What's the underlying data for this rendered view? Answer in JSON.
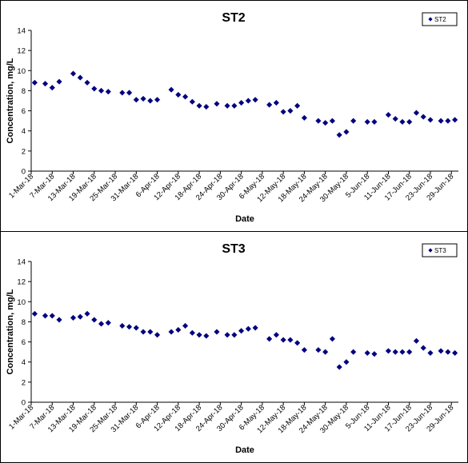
{
  "chart_data": [
    {
      "type": "scatter",
      "title": "ST2",
      "xlabel": "Date",
      "ylabel": "Concentration, mg/L",
      "ylim": [
        0,
        14
      ],
      "yticks": [
        "0",
        "2",
        "4",
        "6",
        "8",
        "10",
        "12",
        "14"
      ],
      "x_tick_labels": [
        "1-Mar-18",
        "7-Mar-18",
        "13-Mar-18",
        "19-Mar-18",
        "25-Mar-18",
        "31-Mar-18",
        "6-Apr-18",
        "12-Apr-18",
        "18-Apr-18",
        "24-Apr-18",
        "30-Apr-18",
        "6-May-18",
        "12-May-18",
        "18-May-18",
        "24-May-18",
        "30-May-18",
        "5-Jun-18",
        "11-Jun-18",
        "17-Jun-18",
        "23-Jun-18",
        "29-Jun-18"
      ],
      "legend": "top-right",
      "marker_color": "#000080",
      "series": [
        {
          "name": "ST2",
          "points": [
            [
              "2018-03-02",
              8.8
            ],
            [
              "2018-03-05",
              8.7
            ],
            [
              "2018-03-07",
              8.3
            ],
            [
              "2018-03-09",
              8.9
            ],
            [
              "2018-03-13",
              9.7
            ],
            [
              "2018-03-15",
              9.3
            ],
            [
              "2018-03-17",
              8.8
            ],
            [
              "2018-03-19",
              8.2
            ],
            [
              "2018-03-21",
              8.0
            ],
            [
              "2018-03-23",
              7.9
            ],
            [
              "2018-03-27",
              7.8
            ],
            [
              "2018-03-29",
              7.8
            ],
            [
              "2018-03-31",
              7.1
            ],
            [
              "2018-04-02",
              7.2
            ],
            [
              "2018-04-04",
              7.0
            ],
            [
              "2018-04-06",
              7.1
            ],
            [
              "2018-04-10",
              8.1
            ],
            [
              "2018-04-12",
              7.6
            ],
            [
              "2018-04-14",
              7.4
            ],
            [
              "2018-04-16",
              6.9
            ],
            [
              "2018-04-18",
              6.5
            ],
            [
              "2018-04-20",
              6.4
            ],
            [
              "2018-04-23",
              6.7
            ],
            [
              "2018-04-26",
              6.5
            ],
            [
              "2018-04-28",
              6.5
            ],
            [
              "2018-04-30",
              6.8
            ],
            [
              "2018-05-02",
              7.0
            ],
            [
              "2018-05-04",
              7.1
            ],
            [
              "2018-05-08",
              6.6
            ],
            [
              "2018-05-10",
              6.8
            ],
            [
              "2018-05-12",
              5.9
            ],
            [
              "2018-05-14",
              6.0
            ],
            [
              "2018-05-16",
              6.5
            ],
            [
              "2018-05-18",
              5.3
            ],
            [
              "2018-05-22",
              5.0
            ],
            [
              "2018-05-24",
              4.8
            ],
            [
              "2018-05-26",
              5.0
            ],
            [
              "2018-05-28",
              3.6
            ],
            [
              "2018-05-30",
              3.9
            ],
            [
              "2018-06-01",
              5.0
            ],
            [
              "2018-06-05",
              4.9
            ],
            [
              "2018-06-07",
              4.9
            ],
            [
              "2018-06-11",
              5.6
            ],
            [
              "2018-06-13",
              5.2
            ],
            [
              "2018-06-15",
              4.9
            ],
            [
              "2018-06-17",
              4.9
            ],
            [
              "2018-06-19",
              5.8
            ],
            [
              "2018-06-21",
              5.4
            ],
            [
              "2018-06-23",
              5.1
            ],
            [
              "2018-06-26",
              5.0
            ],
            [
              "2018-06-28",
              5.0
            ],
            [
              "2018-06-30",
              5.1
            ]
          ]
        }
      ]
    },
    {
      "type": "scatter",
      "title": "ST3",
      "xlabel": "Date",
      "ylabel": "Concentration, mg/L",
      "ylim": [
        0,
        14
      ],
      "yticks": [
        "0",
        "2",
        "4",
        "6",
        "8",
        "10",
        "12",
        "14"
      ],
      "x_tick_labels": [
        "1-Mar-18",
        "7-Mar-18",
        "13-Mar-18",
        "19-Mar-18",
        "25-Mar-18",
        "31-Mar-18",
        "6-Apr-18",
        "12-Apr-18",
        "18-Apr-18",
        "24-Apr-18",
        "30-Apr-18",
        "6-May-18",
        "12-May-18",
        "18-May-18",
        "24-May-18",
        "30-May-18",
        "5-Jun-18",
        "11-Jun-18",
        "17-Jun-18",
        "23-Jun-18",
        "29-Jun-18"
      ],
      "legend": "top-right",
      "marker_color": "#000080",
      "series": [
        {
          "name": "ST3",
          "points": [
            [
              "2018-03-02",
              8.8
            ],
            [
              "2018-03-05",
              8.6
            ],
            [
              "2018-03-07",
              8.6
            ],
            [
              "2018-03-09",
              8.2
            ],
            [
              "2018-03-13",
              8.4
            ],
            [
              "2018-03-15",
              8.5
            ],
            [
              "2018-03-17",
              8.8
            ],
            [
              "2018-03-19",
              8.2
            ],
            [
              "2018-03-21",
              7.8
            ],
            [
              "2018-03-23",
              7.9
            ],
            [
              "2018-03-27",
              7.6
            ],
            [
              "2018-03-29",
              7.5
            ],
            [
              "2018-03-31",
              7.4
            ],
            [
              "2018-04-02",
              7.0
            ],
            [
              "2018-04-04",
              7.0
            ],
            [
              "2018-04-06",
              6.7
            ],
            [
              "2018-04-10",
              7.0
            ],
            [
              "2018-04-12",
              7.2
            ],
            [
              "2018-04-14",
              7.6
            ],
            [
              "2018-04-16",
              6.9
            ],
            [
              "2018-04-18",
              6.7
            ],
            [
              "2018-04-20",
              6.6
            ],
            [
              "2018-04-23",
              7.0
            ],
            [
              "2018-04-26",
              6.7
            ],
            [
              "2018-04-28",
              6.7
            ],
            [
              "2018-04-30",
              7.1
            ],
            [
              "2018-05-02",
              7.3
            ],
            [
              "2018-05-04",
              7.4
            ],
            [
              "2018-05-08",
              6.3
            ],
            [
              "2018-05-10",
              6.7
            ],
            [
              "2018-05-12",
              6.2
            ],
            [
              "2018-05-14",
              6.2
            ],
            [
              "2018-05-16",
              5.9
            ],
            [
              "2018-05-18",
              5.2
            ],
            [
              "2018-05-22",
              5.2
            ],
            [
              "2018-05-24",
              5.0
            ],
            [
              "2018-05-26",
              6.3
            ],
            [
              "2018-05-28",
              3.5
            ],
            [
              "2018-05-30",
              4.0
            ],
            [
              "2018-06-01",
              5.0
            ],
            [
              "2018-06-05",
              4.9
            ],
            [
              "2018-06-07",
              4.8
            ],
            [
              "2018-06-11",
              5.1
            ],
            [
              "2018-06-13",
              5.0
            ],
            [
              "2018-06-15",
              5.0
            ],
            [
              "2018-06-17",
              5.0
            ],
            [
              "2018-06-19",
              6.1
            ],
            [
              "2018-06-21",
              5.4
            ],
            [
              "2018-06-23",
              4.9
            ],
            [
              "2018-06-26",
              5.1
            ],
            [
              "2018-06-28",
              5.0
            ],
            [
              "2018-06-30",
              4.9
            ]
          ]
        }
      ]
    }
  ]
}
